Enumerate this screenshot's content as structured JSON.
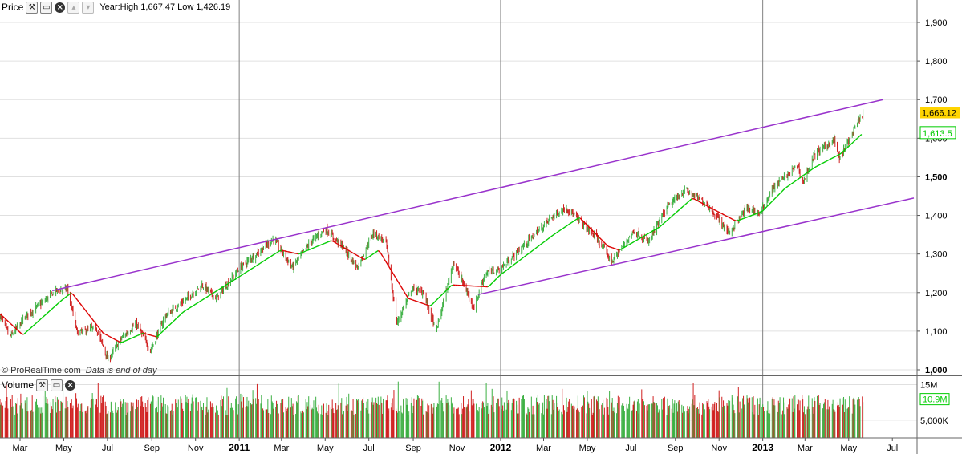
{
  "price_panel": {
    "title": "Price",
    "stats_text": "Year:High 1,667.47 Low 1,426.19",
    "icons": [
      "wrench-icon",
      "window-icon",
      "close-icon",
      "up-icon",
      "down-icon"
    ]
  },
  "volume_panel": {
    "title": "Volume",
    "icons": [
      "wrench-icon",
      "window-icon",
      "close-icon"
    ]
  },
  "watermark": {
    "source": "© ProRealTime.com",
    "note": "Data is end of day"
  },
  "colors": {
    "up": "#3cb043",
    "down": "#d02020",
    "ma_up": "#00cc00",
    "ma_down": "#dd0000",
    "channel": "#9933cc",
    "last_price_bg": "#ffd400",
    "grid": "#e0e0e0",
    "year_line": "#808080"
  },
  "chart_data": [
    {
      "type": "line",
      "title": "",
      "y_ticks": [
        1000,
        1100,
        1200,
        1300,
        1400,
        1500,
        1600,
        1700,
        1800,
        1900
      ],
      "y_tick_labels": [
        "1,000",
        "1,100",
        "1,200",
        "1,300",
        "1,400",
        "1,500",
        "1,600",
        "1,700",
        "1,800",
        "1,900"
      ],
      "ylim": [
        1000,
        1940
      ],
      "x_range": [
        "2010-02-01",
        "2013-07-31"
      ],
      "x_tick_labels": [
        {
          "date": "2010-03-01",
          "label": "Mar"
        },
        {
          "date": "2010-05-01",
          "label": "May"
        },
        {
          "date": "2010-07-01",
          "label": "Jul"
        },
        {
          "date": "2010-09-01",
          "label": "Sep"
        },
        {
          "date": "2010-11-01",
          "label": "Nov"
        },
        {
          "date": "2011-01-01",
          "label": "2011",
          "year": true
        },
        {
          "date": "2011-03-01",
          "label": "Mar"
        },
        {
          "date": "2011-05-01",
          "label": "May"
        },
        {
          "date": "2011-07-01",
          "label": "Jul"
        },
        {
          "date": "2011-09-01",
          "label": "Sep"
        },
        {
          "date": "2011-11-01",
          "label": "Nov"
        },
        {
          "date": "2012-01-01",
          "label": "2012",
          "year": true
        },
        {
          "date": "2012-03-01",
          "label": "Mar"
        },
        {
          "date": "2012-05-01",
          "label": "May"
        },
        {
          "date": "2012-07-01",
          "label": "Jul"
        },
        {
          "date": "2012-09-01",
          "label": "Sep"
        },
        {
          "date": "2012-11-01",
          "label": "Nov"
        },
        {
          "date": "2013-01-01",
          "label": "2013",
          "year": true
        },
        {
          "date": "2013-03-01",
          "label": "Mar"
        },
        {
          "date": "2013-05-01",
          "label": "May"
        },
        {
          "date": "2013-07-01",
          "label": "Jul"
        }
      ],
      "price_keypoints": [
        [
          "2010-02-01",
          1140
        ],
        [
          "2010-02-15",
          1085
        ],
        [
          "2010-03-10",
          1140
        ],
        [
          "2010-04-20",
          1205
        ],
        [
          "2010-05-06",
          1210
        ],
        [
          "2010-05-20",
          1095
        ],
        [
          "2010-06-15",
          1110
        ],
        [
          "2010-07-02",
          1025
        ],
        [
          "2010-07-20",
          1080
        ],
        [
          "2010-08-10",
          1120
        ],
        [
          "2010-08-30",
          1050
        ],
        [
          "2010-09-20",
          1140
        ],
        [
          "2010-10-20",
          1185
        ],
        [
          "2010-11-10",
          1220
        ],
        [
          "2010-11-30",
          1185
        ],
        [
          "2010-12-31",
          1260
        ],
        [
          "2011-02-18",
          1340
        ],
        [
          "2011-03-16",
          1265
        ],
        [
          "2011-04-10",
          1330
        ],
        [
          "2011-05-01",
          1365
        ],
        [
          "2011-05-25",
          1320
        ],
        [
          "2011-06-15",
          1265
        ],
        [
          "2011-07-07",
          1355
        ],
        [
          "2011-07-25",
          1330
        ],
        [
          "2011-08-09",
          1120
        ],
        [
          "2011-08-30",
          1210
        ],
        [
          "2011-09-15",
          1200
        ],
        [
          "2011-10-03",
          1100
        ],
        [
          "2011-10-27",
          1280
        ],
        [
          "2011-11-25",
          1160
        ],
        [
          "2011-12-10",
          1250
        ],
        [
          "2011-12-31",
          1260
        ],
        [
          "2012-03-15",
          1400
        ],
        [
          "2012-04-02",
          1420
        ],
        [
          "2012-05-15",
          1340
        ],
        [
          "2012-06-04",
          1280
        ],
        [
          "2012-07-05",
          1360
        ],
        [
          "2012-07-25",
          1330
        ],
        [
          "2012-08-20",
          1420
        ],
        [
          "2012-09-14",
          1465
        ],
        [
          "2012-10-15",
          1430
        ],
        [
          "2012-11-15",
          1355
        ],
        [
          "2012-12-10",
          1420
        ],
        [
          "2012-12-28",
          1405
        ],
        [
          "2013-01-15",
          1470
        ],
        [
          "2013-02-19",
          1530
        ],
        [
          "2013-02-26",
          1485
        ],
        [
          "2013-03-15",
          1560
        ],
        [
          "2013-04-11",
          1595
        ],
        [
          "2013-04-18",
          1545
        ],
        [
          "2013-05-01",
          1595
        ],
        [
          "2013-05-21",
          1666
        ]
      ],
      "moving_average": {
        "keypoints": [
          [
            "2010-02-01",
            1145
          ],
          [
            "2010-03-05",
            1090
          ],
          [
            "2010-04-28",
            1180
          ],
          [
            "2010-05-12",
            1200
          ],
          [
            "2010-06-25",
            1095
          ],
          [
            "2010-07-20",
            1070
          ],
          [
            "2010-08-20",
            1095
          ],
          [
            "2010-09-08",
            1085
          ],
          [
            "2010-10-15",
            1150
          ],
          [
            "2010-12-31",
            1240
          ],
          [
            "2011-02-28",
            1310
          ],
          [
            "2011-03-25",
            1300
          ],
          [
            "2011-05-10",
            1335
          ],
          [
            "2011-06-25",
            1285
          ],
          [
            "2011-07-15",
            1310
          ],
          [
            "2011-08-25",
            1185
          ],
          [
            "2011-09-25",
            1165
          ],
          [
            "2011-10-25",
            1220
          ],
          [
            "2011-12-15",
            1215
          ],
          [
            "2011-12-31",
            1245
          ],
          [
            "2012-03-15",
            1350
          ],
          [
            "2012-04-20",
            1395
          ],
          [
            "2012-05-30",
            1320
          ],
          [
            "2012-06-15",
            1310
          ],
          [
            "2012-08-10",
            1370
          ],
          [
            "2012-09-25",
            1445
          ],
          [
            "2012-10-20",
            1420
          ],
          [
            "2012-11-25",
            1385
          ],
          [
            "2012-12-31",
            1410
          ],
          [
            "2013-02-01",
            1470
          ],
          [
            "2013-03-15",
            1525
          ],
          [
            "2013-04-20",
            1560
          ],
          [
            "2013-05-21",
            1613.5
          ]
        ]
      },
      "channel_lines": [
        {
          "from": [
            "2010-04-15",
            1205
          ],
          "to": [
            "2013-06-18",
            1700
          ]
        },
        {
          "from": [
            "2011-12-01",
            1195
          ],
          "to": [
            "2013-07-31",
            1445
          ]
        }
      ],
      "last_price": {
        "value": 1666.12,
        "label": "1,666.12"
      },
      "ma_last": {
        "value": 1613.5,
        "label": "1,613.5"
      }
    },
    {
      "type": "bar",
      "title": "Volume",
      "y_ticks": [
        5000000,
        15000000
      ],
      "y_tick_labels": [
        "5,000K",
        "15M"
      ],
      "ylim": [
        0,
        16000000
      ],
      "last_value": {
        "value": 10900000,
        "label": "10.9M"
      }
    }
  ]
}
